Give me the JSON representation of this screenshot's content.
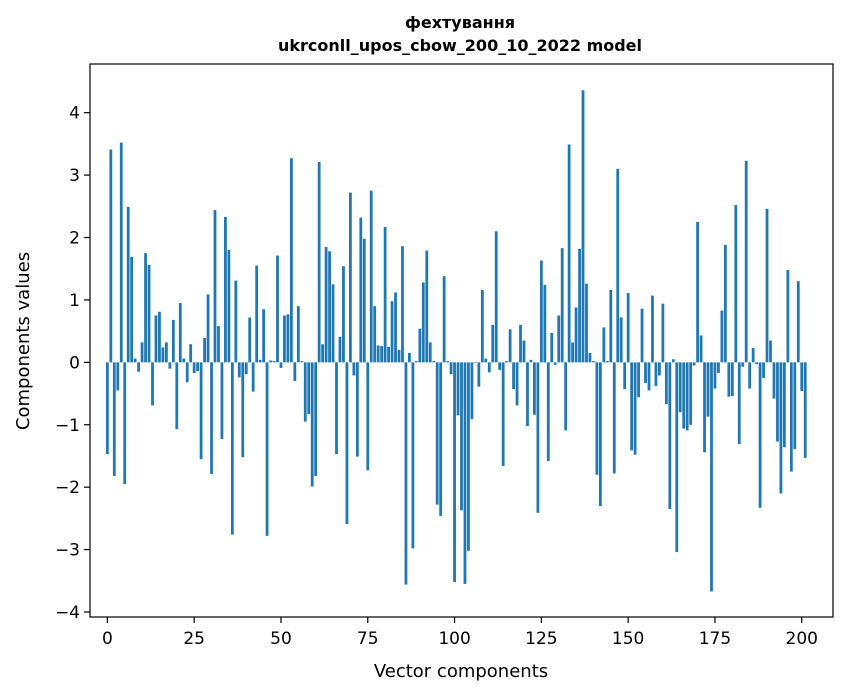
{
  "chart_data": {
    "type": "bar",
    "title": "фехтування",
    "subtitle": "ukrconll_upos_cbow_200_10_2022 model",
    "xlabel": "Vector components",
    "ylabel": "Components values",
    "xlim": [
      -5,
      209
    ],
    "ylim": [
      -4.08,
      4.78
    ],
    "xticks": [
      0,
      25,
      50,
      75,
      100,
      125,
      150,
      175,
      200
    ],
    "yticks": [
      -4,
      -3,
      -2,
      -1,
      0,
      1,
      2,
      3,
      4
    ],
    "grid": false,
    "legend": "none",
    "bar_color": "#1f77b4",
    "values": [
      -1.47,
      3.41,
      -1.82,
      -0.45,
      3.52,
      -1.95,
      2.49,
      1.69,
      0.06,
      -0.15,
      0.32,
      1.75,
      1.56,
      -0.69,
      0.75,
      0.81,
      0.24,
      0.32,
      -0.1,
      0.68,
      -1.07,
      0.95,
      0.06,
      -0.32,
      0.29,
      -0.17,
      -0.14,
      -1.55,
      0.39,
      1.09,
      -1.79,
      2.44,
      0.58,
      -1.23,
      2.33,
      1.8,
      -2.76,
      1.31,
      -0.24,
      -1.52,
      -0.19,
      0.72,
      -0.47,
      1.55,
      0.04,
      0.85,
      -2.78,
      0.03,
      0.02,
      1.71,
      -0.09,
      0.75,
      0.77,
      3.27,
      -0.3,
      0.9,
      0.02,
      -0.95,
      -0.83,
      -1.99,
      -1.82,
      3.21,
      0.29,
      1.85,
      1.78,
      1.25,
      -1.47,
      0.41,
      1.54,
      -2.59,
      2.72,
      -0.21,
      -1.51,
      2.32,
      1.98,
      -1.73,
      2.75,
      0.9,
      0.27,
      0.26,
      2.17,
      0.25,
      0.98,
      1.12,
      0.2,
      1.86,
      -3.56,
      0.15,
      -2.98,
      0.02,
      0.54,
      1.28,
      1.79,
      0.32,
      0.02,
      -2.28,
      -2.46,
      1.38,
      0.02,
      -0.19,
      -3.52,
      -0.85,
      -2.37,
      -3.55,
      -3.02,
      -0.91,
      -0.01,
      -0.39,
      1.16,
      0.06,
      -0.16,
      0.6,
      2.1,
      -0.12,
      -1.66,
      0.02,
      0.53,
      -0.43,
      -0.69,
      0.6,
      0.35,
      -1.02,
      0.04,
      -0.84,
      -2.41,
      1.63,
      1.24,
      -1.58,
      0.47,
      -0.04,
      0.75,
      1.83,
      -1.09,
      3.49,
      0.32,
      0.88,
      1.82,
      4.36,
      1.26,
      0.15,
      0.02,
      -1.8,
      -2.3,
      0.56,
      0.02,
      1.16,
      -1.78,
      3.1,
      0.72,
      -0.43,
      1.11,
      -1.41,
      -1.48,
      -0.56,
      0.86,
      -0.33,
      -0.45,
      1.07,
      -0.38,
      -0.21,
      0.94,
      -0.67,
      -2.35,
      0.05,
      -3.04,
      -0.8,
      -1.06,
      -1.09,
      -1.0,
      -0.05,
      2.25,
      0.43,
      -1.44,
      -0.87,
      -3.67,
      -0.42,
      -0.17,
      0.83,
      1.88,
      -0.55,
      -0.54,
      2.52,
      -1.31,
      -0.07,
      3.23,
      -0.42,
      0.23,
      -0.03,
      -2.33,
      -0.25,
      2.46,
      0.35,
      -0.58,
      -1.27,
      -2.1,
      -1.36,
      1.48,
      -1.75,
      -1.39,
      1.3,
      -0.46,
      -1.53
    ]
  }
}
